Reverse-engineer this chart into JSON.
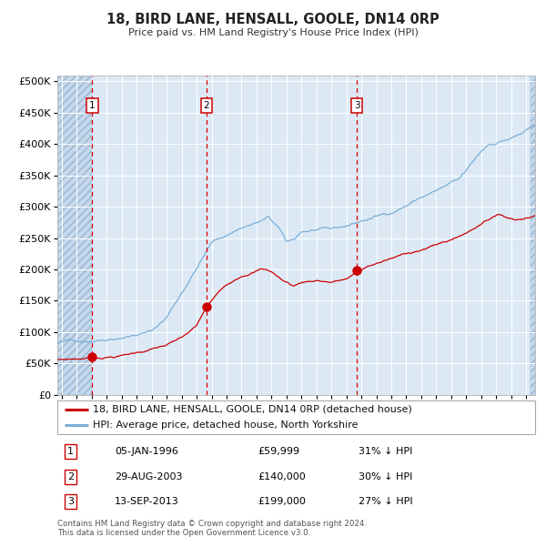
{
  "title": "18, BIRD LANE, HENSALL, GOOLE, DN14 0RP",
  "subtitle": "Price paid vs. HM Land Registry's House Price Index (HPI)",
  "property_label": "18, BIRD LANE, HENSALL, GOOLE, DN14 0RP (detached house)",
  "hpi_label": "HPI: Average price, detached house, North Yorkshire",
  "transactions": [
    {
      "num": 1,
      "date": "05-JAN-1996",
      "date_decimal": 1996.03,
      "price": 59999,
      "hpi_pct": "31% ↓ HPI"
    },
    {
      "num": 2,
      "date": "29-AUG-2003",
      "date_decimal": 2003.66,
      "price": 140000,
      "hpi_pct": "30% ↓ HPI"
    },
    {
      "num": 3,
      "date": "13-SEP-2013",
      "date_decimal": 2013.7,
      "price": 199000,
      "hpi_pct": "27% ↓ HPI"
    }
  ],
  "property_color": "#cc0000",
  "hpi_color": "#7aaed6",
  "background_color": "#dce9f5",
  "grid_color": "#ffffff",
  "vline_color": "#dd0000",
  "ylim": [
    0,
    510000
  ],
  "ytick_step": 50000,
  "xmin": 1993.7,
  "xmax": 2025.6,
  "footnote": "Contains HM Land Registry data © Crown copyright and database right 2024.\nThis data is licensed under the Open Government Licence v3.0."
}
